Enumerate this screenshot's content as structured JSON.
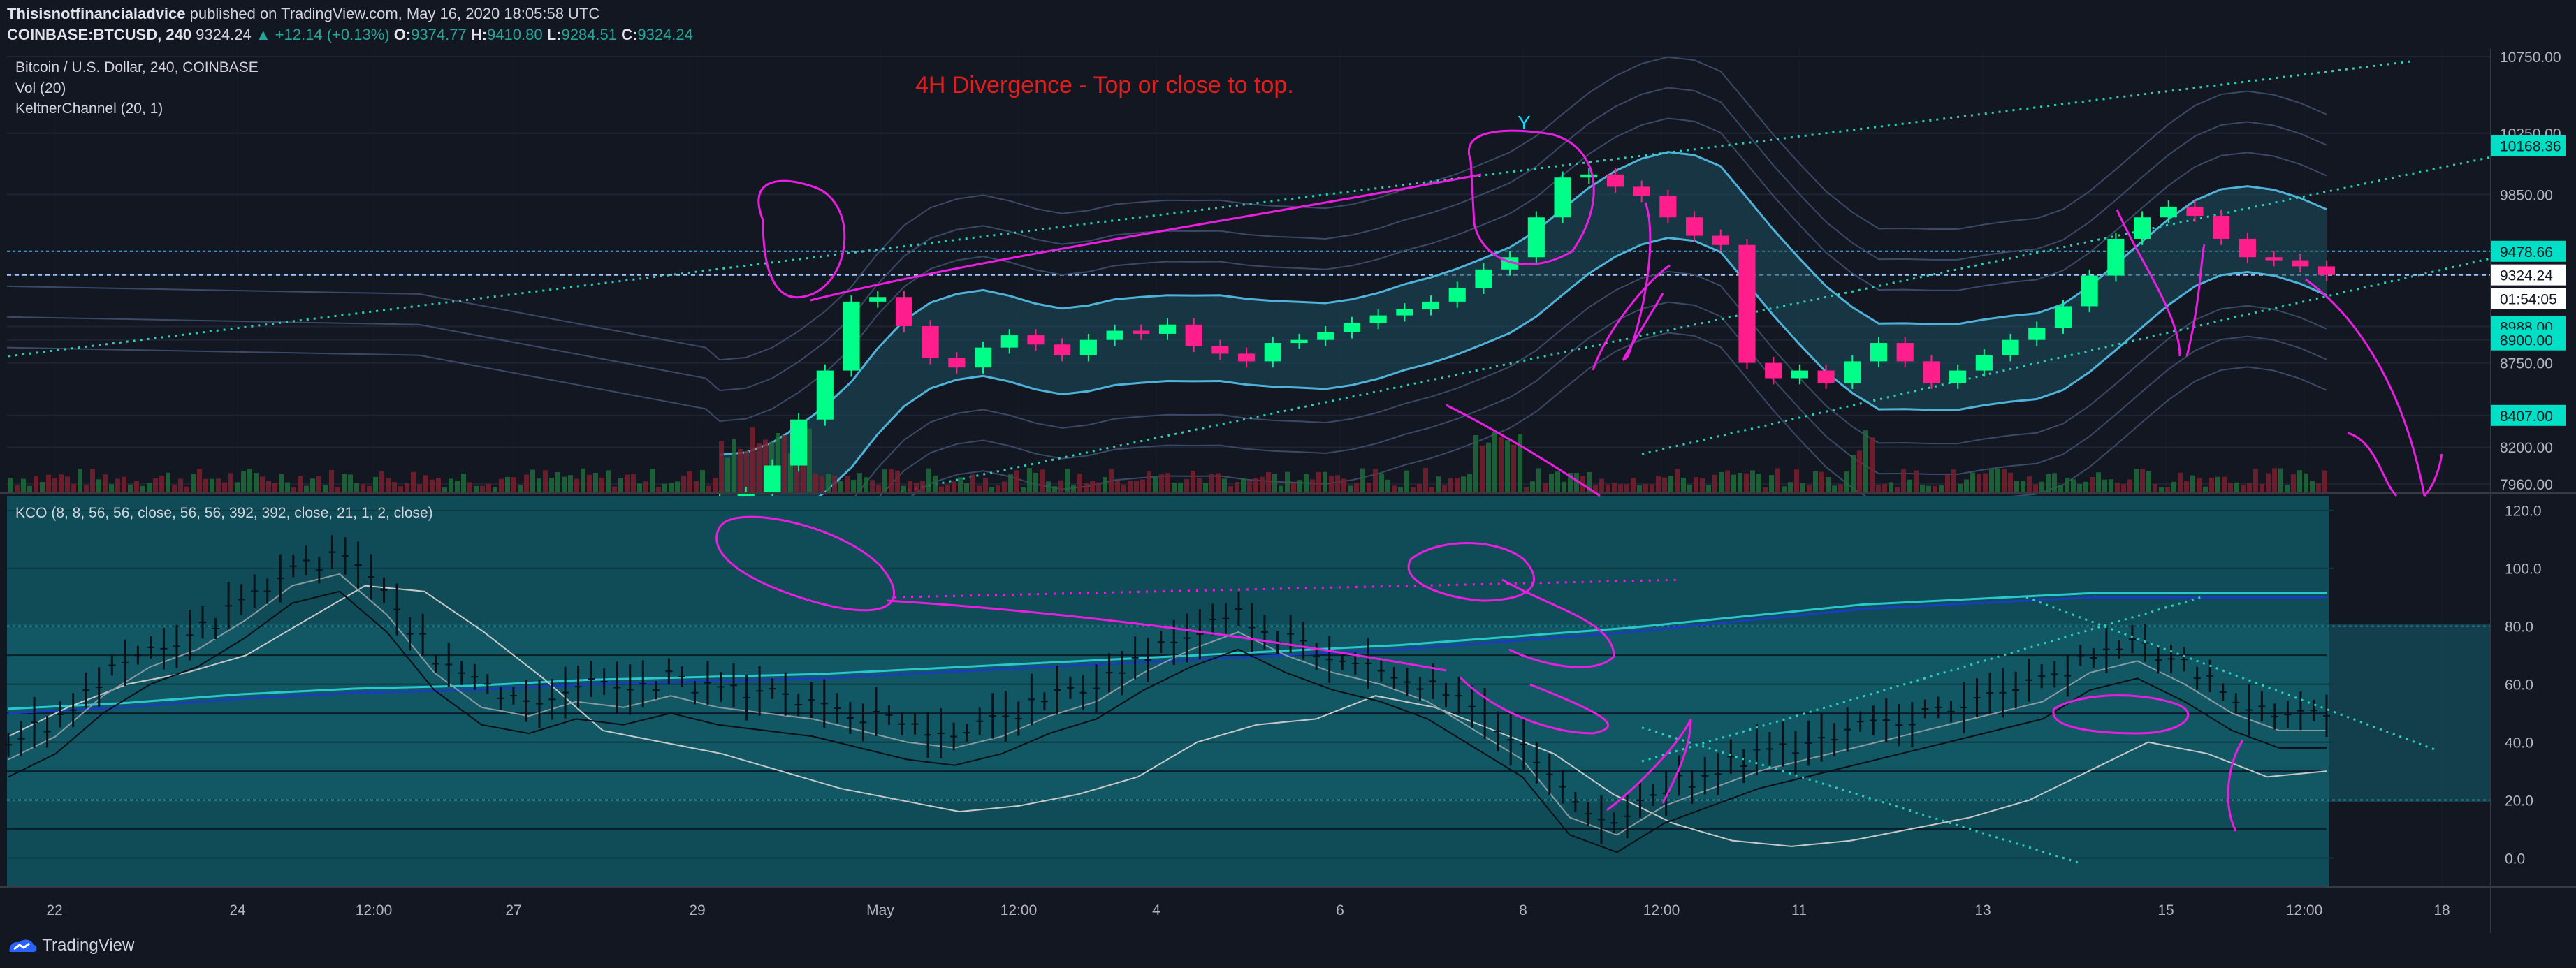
{
  "header": {
    "publisher": "Thisisnotfinancialadvice",
    "published_text": "published on TradingView.com, May 16, 2020 18:05:58 UTC",
    "symbol": "COINBASE:BTCUSD, 240",
    "last": "9324.24",
    "change": "▲ +12.14 (+0.13%)",
    "o_label": "O:",
    "o_value": "9374.77",
    "h_label": "H:",
    "h_value": "9410.80",
    "l_label": "L:",
    "l_value": "9284.51",
    "c_label": "C:",
    "c_value": "9324.24"
  },
  "legend": {
    "line1": "Bitcoin / U.S. Dollar, 240, COINBASE",
    "line2": "Vol (20)",
    "line3": "KeltnerChannel (20, 1)",
    "kco": "KCO (8, 8, 56, 56, close, 56, 56, 392, 392, close, 21, 1, 2, close)"
  },
  "annotation": "4H Divergence - Top or close to top.",
  "annotation_y": "Y",
  "footer": {
    "brand": "TradingView"
  },
  "colors": {
    "background": "#131722",
    "up": "#00ff88",
    "down": "#ff1e8c",
    "annotation": "#e01e1e",
    "drawing": "#e91ee0",
    "kco_bg": "#0f4c57",
    "channel": "#4fb3d9"
  },
  "chart_data": [
    {
      "type": "candlestick",
      "panel": "price",
      "y_axis_ticks": [
        "10750.00",
        "10250.00",
        "9850.00",
        "9478.66",
        "9324.24",
        "01:54:05",
        "8988.00",
        "8900.00",
        "8750.00",
        "8407.00",
        "8200.00",
        "7960.00"
      ],
      "price_labels": [
        "10168.36",
        "9478.66",
        "9324.24",
        "8988.00",
        "8900.00",
        "8407.00"
      ],
      "countdown": "01:54:05",
      "ylim": [
        7900,
        10800
      ],
      "x_ticks": [
        "22",
        "24",
        "12:00",
        "27",
        "29",
        "May",
        "12:00",
        "4",
        "6",
        "8",
        "12:00",
        "11",
        "13",
        "15",
        "12:00",
        "18"
      ],
      "series": [
        {
          "name": "close",
          "values": [
            7870,
            7900,
            8080,
            8380,
            8700,
            9150,
            9180,
            8990,
            8780,
            8720,
            8850,
            8930,
            8870,
            8800,
            8900,
            8960,
            8940,
            9000,
            8860,
            8810,
            8760,
            8880,
            8900,
            8950,
            9010,
            9060,
            9100,
            9150,
            9240,
            9360,
            9440,
            9700,
            9960,
            9980,
            9900,
            9840,
            9700,
            9580,
            9520,
            8750,
            8650,
            8700,
            8620,
            8760,
            8880,
            8760,
            8620,
            8700,
            8800,
            8900,
            8980,
            9120,
            9320,
            9560,
            9700,
            9770,
            9710,
            9560,
            9440,
            9420,
            9380,
            9324
          ]
        }
      ]
    },
    {
      "type": "line",
      "panel": "KCO",
      "y_axis_ticks": [
        "120.0",
        "100.0",
        "80.0",
        "60.0",
        "40.0",
        "20.0",
        "0.0"
      ],
      "ylim": [
        -10,
        125
      ],
      "series": [
        {
          "name": "fast",
          "values": [
            40,
            48,
            62,
            72,
            78,
            88,
            100,
            104,
            90,
            70,
            58,
            55,
            60,
            58,
            62,
            58,
            56,
            54,
            50,
            46,
            44,
            48,
            55,
            60,
            70,
            78,
            84,
            76,
            70,
            66,
            60,
            50,
            40,
            20,
            14,
            24,
            30,
            36,
            40,
            44,
            48,
            52,
            56,
            60,
            70,
            74,
            66,
            56,
            50,
            50
          ]
        },
        {
          "name": "slow",
          "values": [
            42,
            52,
            60,
            64,
            70,
            82,
            94,
            92,
            78,
            62,
            44,
            40,
            36,
            30,
            24,
            20,
            16,
            18,
            22,
            28,
            40,
            46,
            48,
            56,
            52,
            44,
            36,
            22,
            12,
            6,
            4,
            6,
            10,
            14,
            20,
            30,
            40,
            36,
            28,
            30
          ]
        },
        {
          "name": "trend",
          "values": [
            50,
            52,
            55,
            57,
            58,
            60,
            61,
            62,
            64,
            66,
            68,
            70,
            72,
            75,
            78,
            82,
            86,
            88,
            90,
            90,
            90
          ]
        }
      ]
    }
  ]
}
